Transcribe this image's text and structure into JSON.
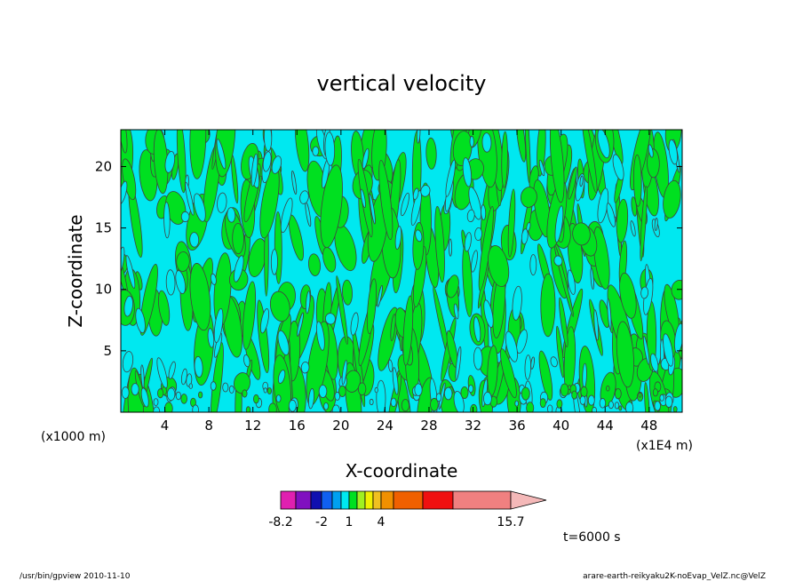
{
  "chart_data": {
    "type": "heatmap",
    "title": "vertical velocity",
    "xlabel": "X-coordinate",
    "ylabel": "Z-coordinate",
    "x_unit_left": "(x1000 m)",
    "x_unit_right": "(x1E4 m)",
    "x_ticks": [
      4,
      8,
      12,
      16,
      20,
      24,
      28,
      32,
      36,
      40,
      44,
      48
    ],
    "y_ticks": [
      5,
      10,
      15,
      20
    ],
    "xlim": [
      0,
      51
    ],
    "ylim": [
      0,
      23
    ],
    "colorbar": {
      "colors": [
        "#e020b0",
        "#8010c0",
        "#1010b0",
        "#1060f0",
        "#00a0f0",
        "#00e8f0",
        "#00e020",
        "#a0f020",
        "#f0f000",
        "#f0c020",
        "#f09000",
        "#f06000",
        "#f01010",
        "#f08080"
      ],
      "extend_color": "#f4b8b8",
      "labels": [
        "-8.2",
        "-2",
        "1",
        "4",
        "15.7"
      ]
    },
    "dominant_colors": {
      "negative": "#00e8f0",
      "positive": "#00e020",
      "contour": "#404040"
    },
    "time_label": "t=6000 s"
  },
  "footer": {
    "left": "/usr/bin/gpview   2010-11-10",
    "right": "arare-earth-reikyaku2K-noEvap_VelZ.nc@VelZ"
  }
}
